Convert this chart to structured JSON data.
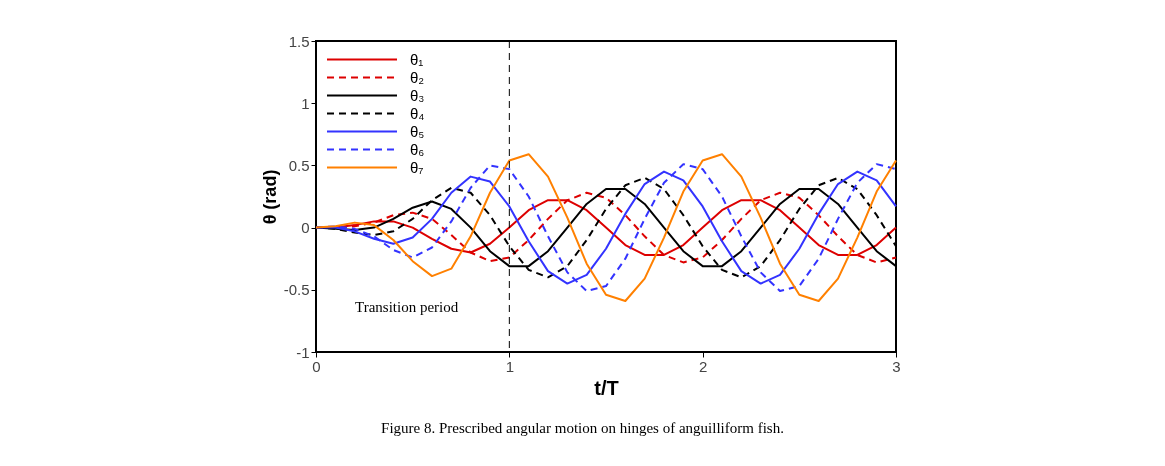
{
  "chart_data": {
    "type": "line",
    "xlabel": "t/T",
    "ylabel": "θ (rad)",
    "x": [
      0,
      0.1,
      0.2,
      0.3,
      0.4,
      0.5,
      0.6,
      0.7,
      0.8,
      0.9,
      1,
      1.1,
      1.2,
      1.3,
      1.4,
      1.5,
      1.6,
      1.7,
      1.8,
      1.9,
      2,
      2.1,
      2.2,
      2.3,
      2.4,
      2.5,
      2.6,
      2.7,
      2.8,
      2.9,
      3
    ],
    "series": [
      {
        "name": "θ₁",
        "color": "#dd0000",
        "line_style": "solid",
        "values": [
          0,
          0,
          0.02,
          0.05,
          0.05,
          0,
          -0.09,
          -0.17,
          -0.2,
          -0.13,
          0,
          0.14,
          0.22,
          0.22,
          0.14,
          0,
          -0.14,
          -0.22,
          -0.22,
          -0.14,
          0,
          0.14,
          0.22,
          0.22,
          0.14,
          0,
          -0.14,
          -0.22,
          -0.22,
          -0.14,
          0
        ]
      },
      {
        "name": "θ₂",
        "color": "#dd0000",
        "line_style": "dashed",
        "values": [
          0,
          0,
          0.01,
          0.04,
          0.1,
          0.12,
          0.07,
          -0.06,
          -0.2,
          -0.27,
          -0.24,
          -0.1,
          0.07,
          0.22,
          0.28,
          0.24,
          0.1,
          -0.07,
          -0.22,
          -0.28,
          -0.24,
          -0.1,
          0.07,
          0.22,
          0.28,
          0.24,
          0.1,
          -0.07,
          -0.22,
          -0.28,
          -0.24
        ]
      },
      {
        "name": "θ₃",
        "color": "#000000",
        "line_style": "solid",
        "values": [
          0,
          -0.01,
          -0.02,
          0,
          0.07,
          0.16,
          0.21,
          0.15,
          0,
          -0.19,
          -0.31,
          -0.31,
          -0.19,
          0,
          0.19,
          0.31,
          0.31,
          0.19,
          0,
          -0.19,
          -0.31,
          -0.31,
          -0.19,
          0,
          0.19,
          0.31,
          0.31,
          0.19,
          0,
          -0.19,
          -0.31
        ]
      },
      {
        "name": "θ₄",
        "color": "#000000",
        "line_style": "dashed",
        "values": [
          0,
          -0.01,
          -0.04,
          -0.06,
          -0.03,
          0.07,
          0.22,
          0.32,
          0.28,
          0.1,
          -0.15,
          -0.34,
          -0.4,
          -0.31,
          -0.1,
          0.15,
          0.34,
          0.4,
          0.31,
          0.1,
          -0.15,
          -0.34,
          -0.4,
          -0.31,
          -0.1,
          0.15,
          0.34,
          0.4,
          0.31,
          0.1,
          -0.15
        ]
      },
      {
        "name": "θ₅",
        "color": "#3333ff",
        "line_style": "solid",
        "values": [
          0,
          0,
          -0.03,
          -0.09,
          -0.13,
          -0.08,
          0.07,
          0.28,
          0.41,
          0.37,
          0.17,
          -0.11,
          -0.35,
          -0.45,
          -0.38,
          -0.17,
          0.11,
          0.35,
          0.45,
          0.38,
          0.17,
          -0.11,
          -0.35,
          -0.45,
          -0.38,
          -0.17,
          0.11,
          0.35,
          0.45,
          0.38,
          0.17
        ]
      },
      {
        "name": "θ₆",
        "color": "#3333ff",
        "line_style": "dashed",
        "values": [
          0,
          0.01,
          -0.01,
          -0.07,
          -0.18,
          -0.24,
          -0.16,
          0.05,
          0.32,
          0.5,
          0.47,
          0.25,
          -0.07,
          -0.36,
          -0.51,
          -0.47,
          -0.25,
          0.07,
          0.36,
          0.51,
          0.47,
          0.25,
          -0.07,
          -0.36,
          -0.51,
          -0.47,
          -0.25,
          0.07,
          0.36,
          0.51,
          0.47
        ]
      },
      {
        "name": "θ₇",
        "color": "#ff8000",
        "line_style": "solid",
        "values": [
          0,
          0.01,
          0.04,
          0.02,
          -0.1,
          -0.27,
          -0.39,
          -0.33,
          -0.07,
          0.28,
          0.54,
          0.59,
          0.41,
          0.08,
          -0.29,
          -0.54,
          -0.59,
          -0.41,
          -0.08,
          0.29,
          0.54,
          0.59,
          0.41,
          0.08,
          -0.29,
          -0.54,
          -0.59,
          -0.41,
          -0.08,
          0.29,
          0.54
        ]
      }
    ],
    "xlim": [
      0,
      3
    ],
    "xticks": [
      0,
      1,
      2,
      3
    ],
    "ylim": [
      -1,
      1.5
    ],
    "yticks": [
      -1,
      -0.5,
      0,
      0.5,
      1,
      1.5
    ],
    "ref_lines": [
      {
        "axis": "x",
        "value": 1,
        "color": "#000000",
        "line_style": "dashed"
      }
    ],
    "annotations": [
      "Transition period",
      "Figure 8.  Prescribed angular motion on hinges of anguilliform fish."
    ],
    "legend": "top left",
    "grid": false
  }
}
